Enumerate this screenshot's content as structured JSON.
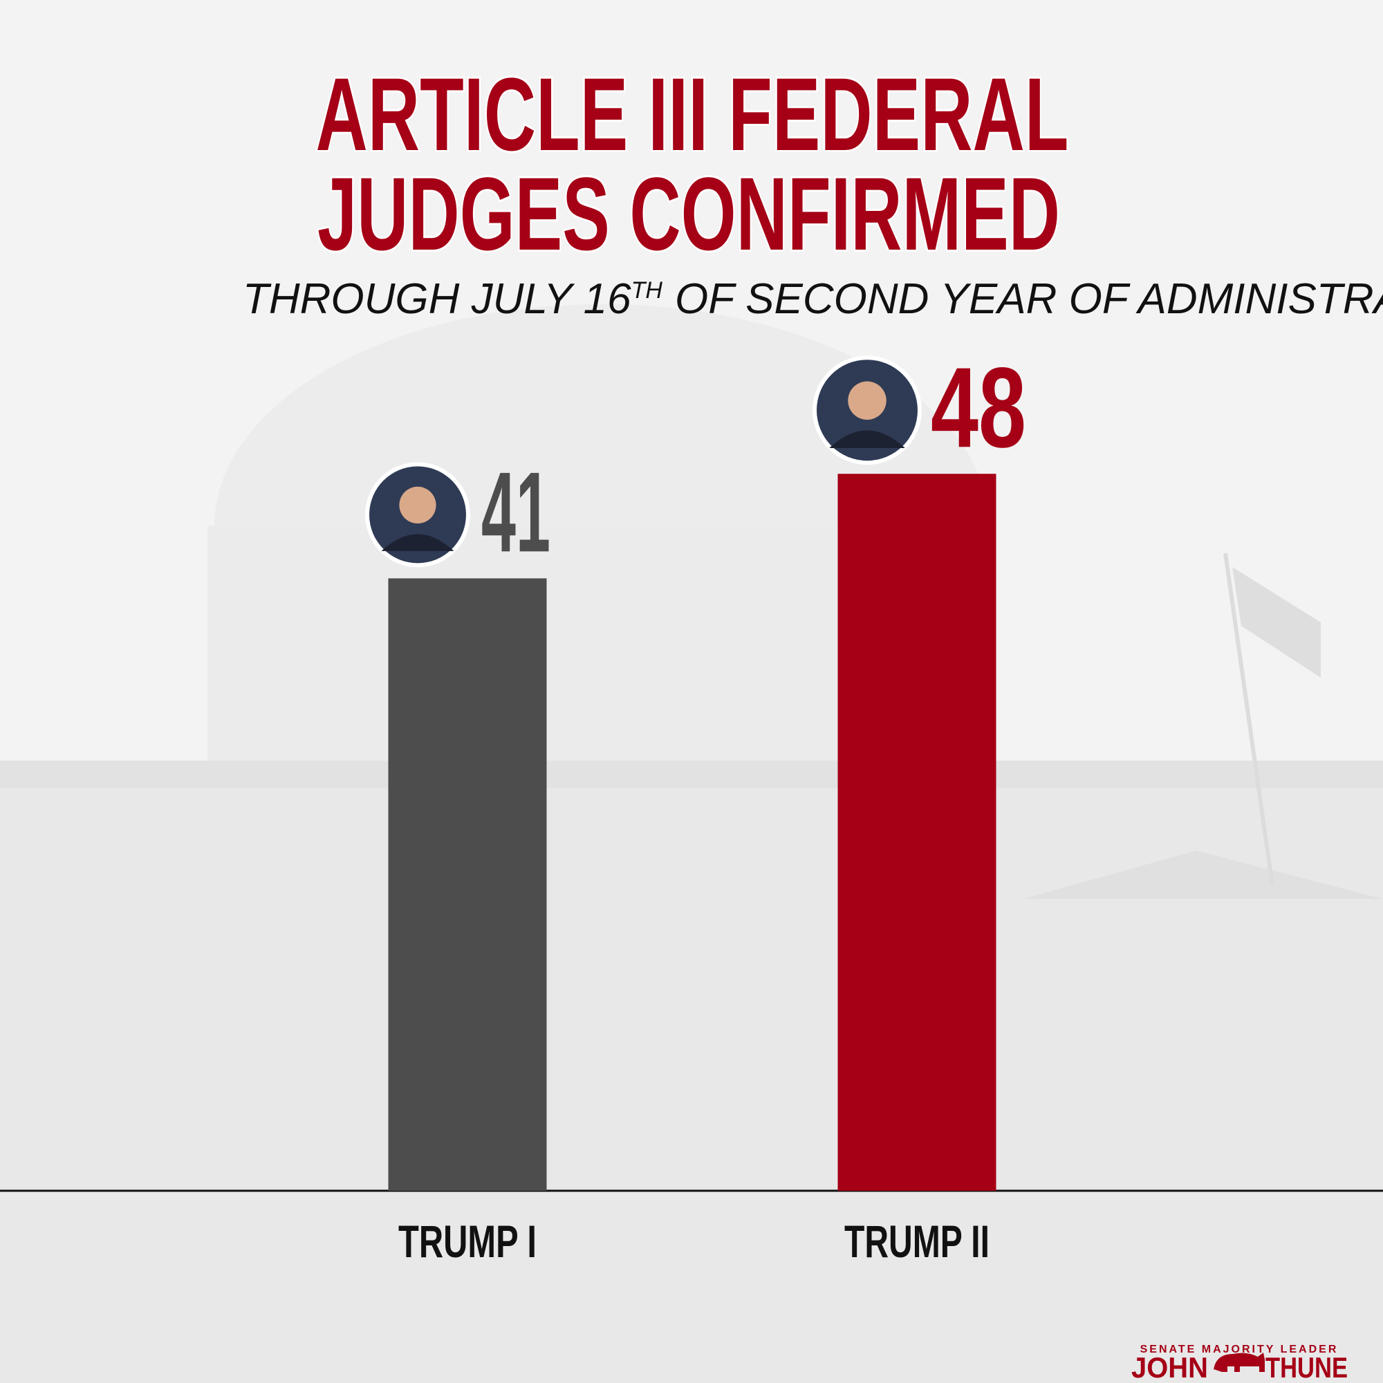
{
  "chart_data": {
    "type": "bar",
    "title": [
      "ARTICLE III FEDERAL",
      "JUDGES CONFIRMED"
    ],
    "subtitle": {
      "text": "THROUGH JULY 16",
      "superscript": "TH",
      "rest": "OF SECOND YEAR OF ADMINISTRATION"
    },
    "categories": [
      "TRUMP I",
      "TRUMP II"
    ],
    "values": [
      41,
      48
    ],
    "colors": [
      "#4d4d4d",
      "#a50016"
    ],
    "ylim": [
      0,
      80
    ]
  },
  "branding": {
    "tagline": "SENATE MAJORITY LEADER",
    "first_name": "JOHN",
    "last_name": "THUNE"
  }
}
